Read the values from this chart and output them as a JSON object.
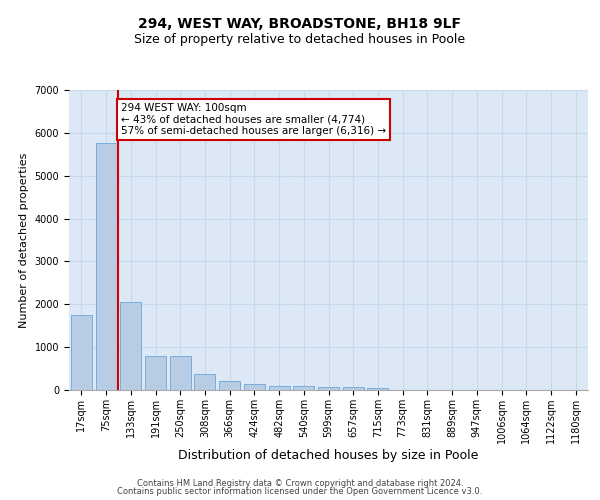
{
  "title1": "294, WEST WAY, BROADSTONE, BH18 9LF",
  "title2": "Size of property relative to detached houses in Poole",
  "xlabel": "Distribution of detached houses by size in Poole",
  "ylabel": "Number of detached properties",
  "categories": [
    "17sqm",
    "75sqm",
    "133sqm",
    "191sqm",
    "250sqm",
    "308sqm",
    "366sqm",
    "424sqm",
    "482sqm",
    "540sqm",
    "599sqm",
    "657sqm",
    "715sqm",
    "773sqm",
    "831sqm",
    "889sqm",
    "947sqm",
    "1006sqm",
    "1064sqm",
    "1122sqm",
    "1180sqm"
  ],
  "values": [
    1760,
    5760,
    2060,
    800,
    790,
    375,
    215,
    130,
    105,
    100,
    80,
    60,
    55,
    0,
    0,
    0,
    0,
    0,
    0,
    0,
    0
  ],
  "bar_color": "#b8cce4",
  "bar_edgecolor": "#5b9bd5",
  "grid_color": "#c8d8ec",
  "background_color": "#dce8f5",
  "vline_x": 1.5,
  "vline_color": "#cc0000",
  "annotation_text": "294 WEST WAY: 100sqm\n← 43% of detached houses are smaller (4,774)\n57% of semi-detached houses are larger (6,316) →",
  "annotation_box_color": "#cc0000",
  "ylim": [
    0,
    7000
  ],
  "yticks": [
    0,
    1000,
    2000,
    3000,
    4000,
    5000,
    6000,
    7000
  ],
  "footer_line1": "Contains HM Land Registry data © Crown copyright and database right 2024.",
  "footer_line2": "Contains public sector information licensed under the Open Government Licence v3.0.",
  "title1_fontsize": 10,
  "title2_fontsize": 9,
  "xlabel_fontsize": 9,
  "ylabel_fontsize": 8,
  "tick_fontsize": 7,
  "annotation_fontsize": 7.5,
  "footer_fontsize": 6
}
